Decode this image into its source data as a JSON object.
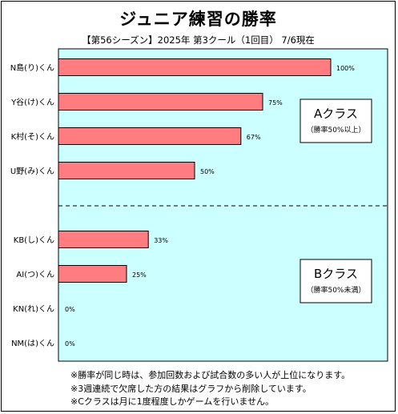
{
  "chart_data": {
    "type": "bar",
    "orientation": "horizontal",
    "title": "ジュニア練習の勝率",
    "subtitle": "【第56シーズン】2025年 第3クール（1回目） 7/6現在",
    "categories": [
      "N島(り)くん",
      "Y谷(け)くん",
      "K村(そ)くん",
      "U野(み)くん",
      "KB(し)くん",
      "AI(つ)くん",
      "KN(れ)くん",
      "NM(は)くん"
    ],
    "values": [
      100,
      75,
      67,
      50,
      33,
      25,
      0,
      0
    ],
    "value_labels": [
      "100%",
      "75%",
      "67%",
      "50%",
      "33%",
      "25%",
      "0%",
      "0%"
    ],
    "xlim": [
      0,
      100
    ],
    "groups": [
      {
        "name": "Aクラス",
        "note": "（勝率50%以上）",
        "members": 4
      },
      {
        "name": "Bクラス",
        "note": "（勝率50%未満）",
        "members": 4
      }
    ],
    "colors": {
      "plot_bg": "#ccffff",
      "bar": "#ff7c80",
      "divider": "#000000"
    }
  },
  "notes": [
    "※勝率が同じ時は、参加回数および試合数の多い人が上位になります。",
    "※3週連続で欠席した方の結果はグラフから削除しています。",
    "※Cクラスは月に1度程度しかゲームを行いません。"
  ]
}
